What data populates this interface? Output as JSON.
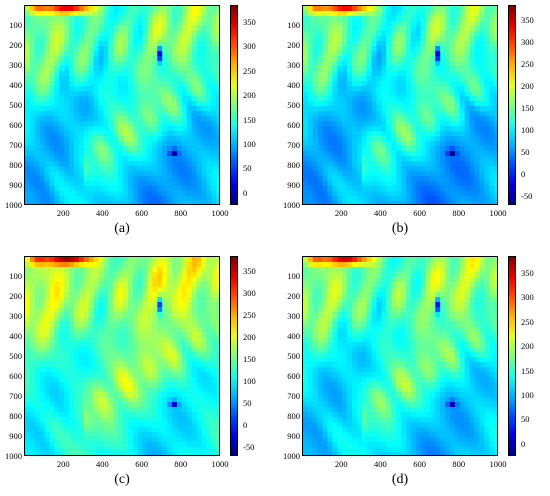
{
  "chart_data": [
    {
      "type": "heatmap",
      "panel_label": "(a)",
      "x_ticks": [
        "200",
        "400",
        "600",
        "800",
        "1000"
      ],
      "y_ticks": [
        "100",
        "200",
        "300",
        "400",
        "500",
        "600",
        "700",
        "800",
        "900",
        "1000"
      ],
      "xlim": [
        0,
        1000
      ],
      "ylim": [
        0,
        1000
      ],
      "colorbar_ticks": [
        "350",
        "300",
        "250",
        "200",
        "150",
        "100",
        "50",
        "0"
      ],
      "colorbar_range": [
        -25,
        385
      ],
      "colormap": "jet"
    },
    {
      "type": "heatmap",
      "panel_label": "(b)",
      "x_ticks": [
        "200",
        "400",
        "600",
        "800",
        "1000"
      ],
      "y_ticks": [
        "100",
        "200",
        "300",
        "400",
        "500",
        "600",
        "700",
        "800",
        "900",
        "1000"
      ],
      "xlim": [
        0,
        1000
      ],
      "ylim": [
        0,
        1000
      ],
      "colorbar_ticks": [
        "350",
        "300",
        "250",
        "200",
        "150",
        "100",
        "50",
        "0",
        "-50"
      ],
      "colorbar_range": [
        -70,
        385
      ],
      "colormap": "jet"
    },
    {
      "type": "heatmap",
      "panel_label": "(c)",
      "x_ticks": [
        "200",
        "400",
        "600",
        "800",
        "1000"
      ],
      "y_ticks": [
        "100",
        "200",
        "300",
        "400",
        "500",
        "600",
        "700",
        "800",
        "900",
        "1000"
      ],
      "xlim": [
        0,
        1000
      ],
      "ylim": [
        0,
        1000
      ],
      "colorbar_ticks": [
        "350",
        "300",
        "250",
        "200",
        "150",
        "100",
        "50",
        "0",
        "-50"
      ],
      "colorbar_range": [
        -70,
        385
      ],
      "colormap": "jet"
    },
    {
      "type": "heatmap",
      "panel_label": "(d)",
      "x_ticks": [
        "200",
        "400",
        "600",
        "800",
        "1000"
      ],
      "y_ticks": [
        "100",
        "200",
        "300",
        "400",
        "500",
        "600",
        "700",
        "800",
        "900",
        "1000"
      ],
      "xlim": [
        0,
        1000
      ],
      "ylim": [
        0,
        1000
      ],
      "colorbar_ticks": [
        "350",
        "300",
        "250",
        "200",
        "150",
        "100",
        "50",
        "0"
      ],
      "colorbar_range": [
        -25,
        385
      ],
      "colormap": "jet"
    }
  ]
}
